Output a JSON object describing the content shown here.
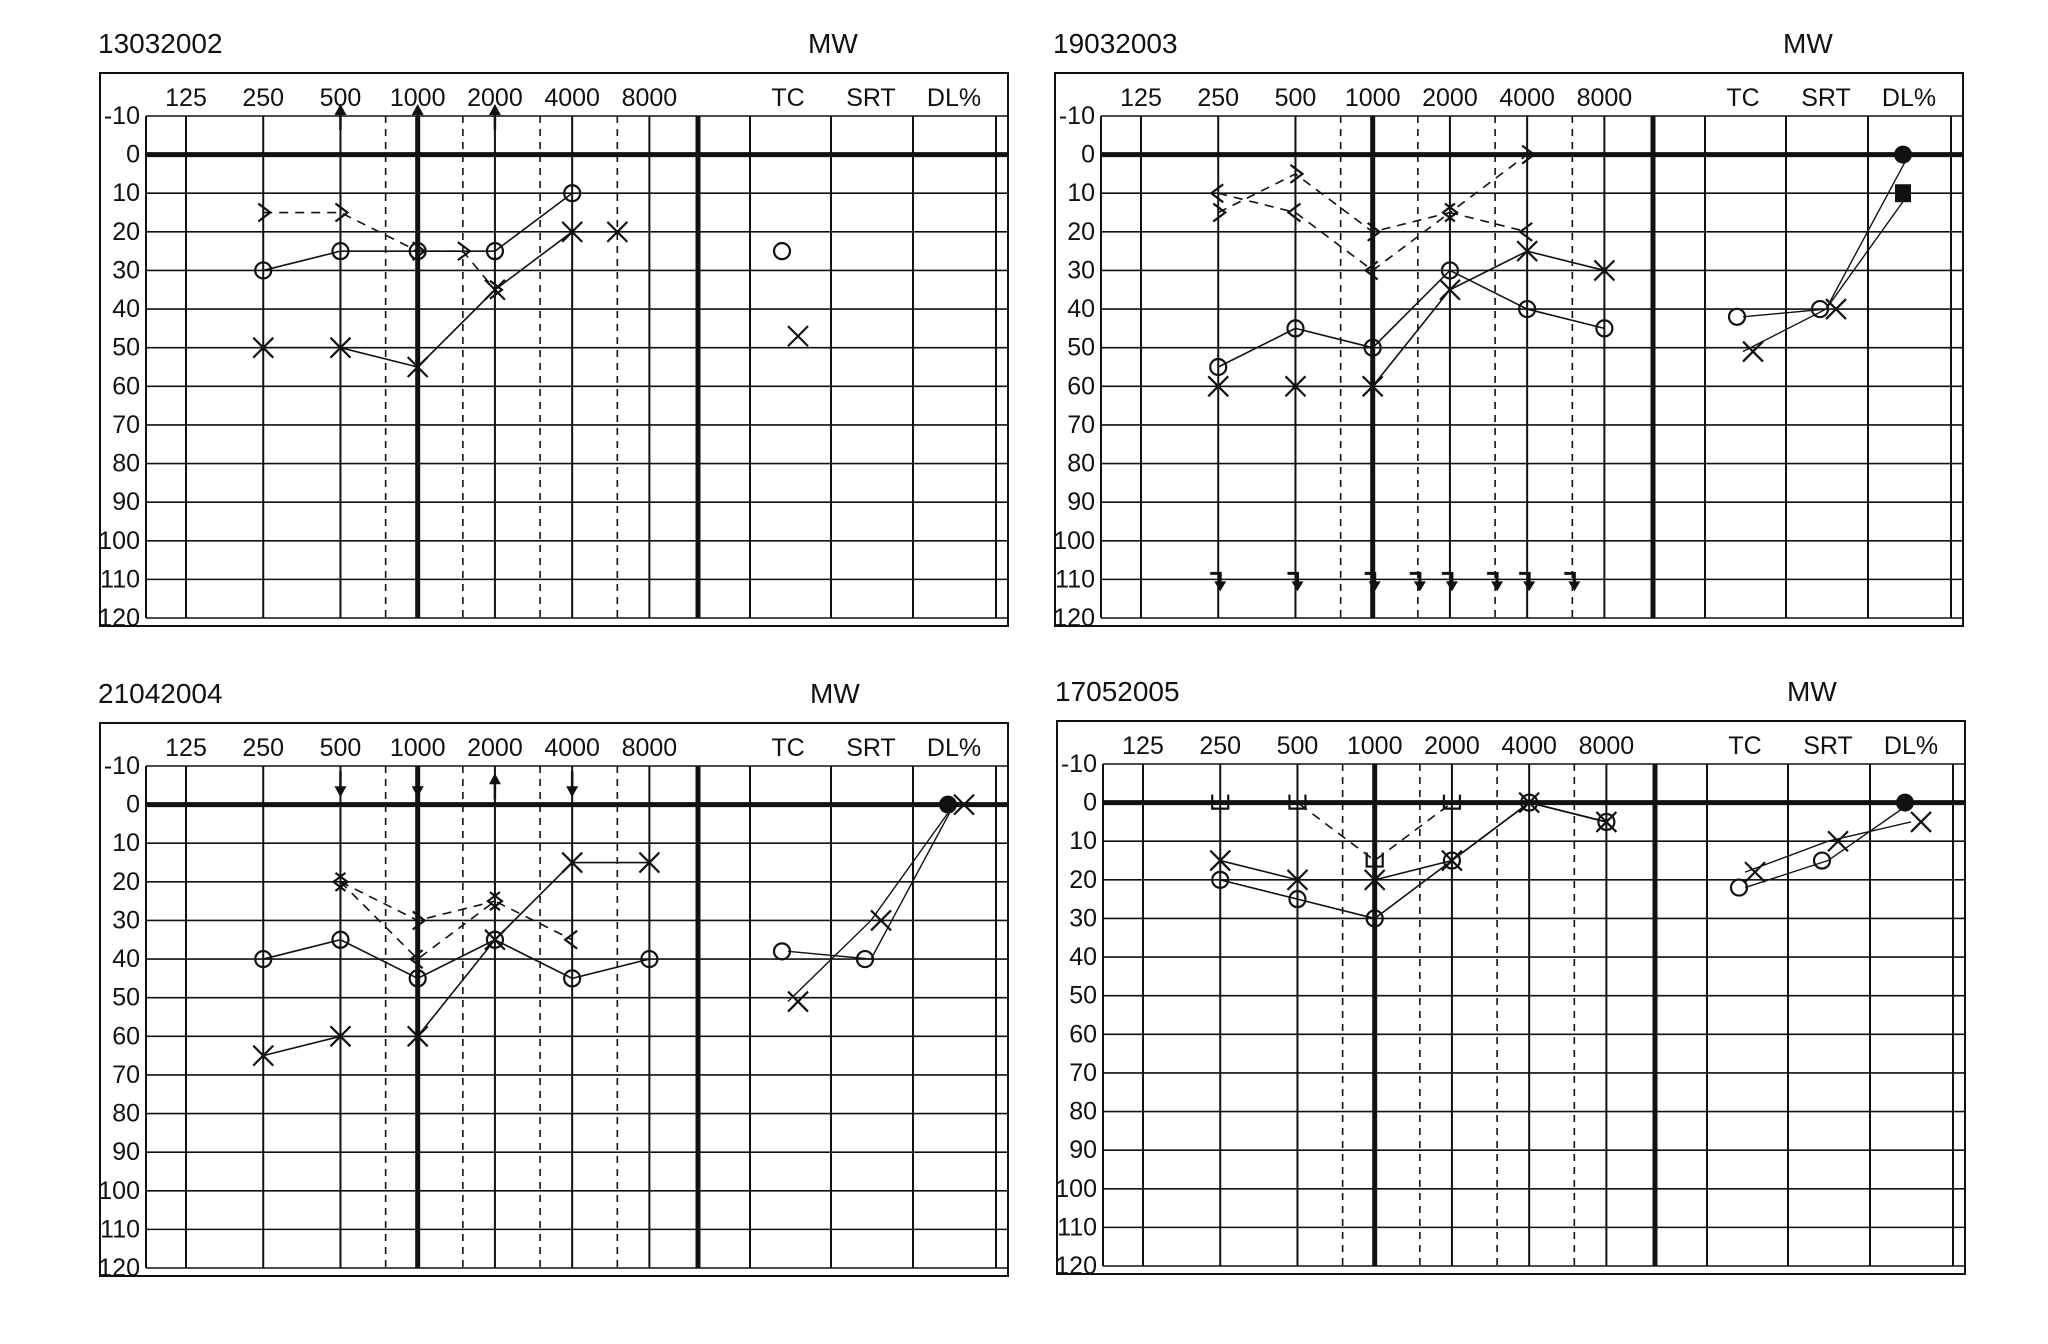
{
  "chart_data": [
    {
      "type": "line",
      "title": "13032002",
      "subtitle": "MW",
      "x_tick_labels": [
        "125",
        "250",
        "500",
        "1000",
        "2000",
        "4000",
        "8000"
      ],
      "extra_column_labels": [
        "TC",
        "SRT",
        "DL%"
      ],
      "y_tick_labels": [
        "-10",
        "0",
        "10",
        "20",
        "30",
        "40",
        "50",
        "60",
        "70",
        "80",
        "90",
        "100",
        "110",
        "120"
      ],
      "ylim": [
        -10,
        120
      ],
      "y_inverted": true,
      "grid": true,
      "series": [
        {
          "marker": "circle",
          "line": "solid",
          "points": [
            [
              "250",
              30
            ],
            [
              "500",
              25
            ],
            [
              "1000",
              25
            ],
            [
              "2000",
              25
            ],
            [
              "4000",
              10
            ]
          ]
        },
        {
          "marker": "x",
          "line": "solid",
          "points": [
            [
              "250",
              50
            ],
            [
              "500",
              50
            ],
            [
              "1000",
              55
            ],
            [
              "2000",
              35
            ],
            [
              "4000",
              20
            ],
            [
              "6000",
              20
            ]
          ]
        },
        {
          "marker": "right-bracket",
          "line": "dashed",
          "points": [
            [
              "250",
              15
            ],
            [
              "500",
              15
            ],
            [
              "1000",
              25
            ],
            [
              "1500",
              25
            ],
            [
              "2000",
              35
            ]
          ]
        },
        {
          "marker": "arrow-up",
          "line": "none",
          "points": [
            [
              "500",
              -10
            ],
            [
              "1000",
              -10
            ],
            [
              "2000",
              -10
            ]
          ]
        }
      ],
      "extra_values": [
        {
          "column": "TC",
          "marker": "circle",
          "value": 25
        },
        {
          "column": "TC",
          "marker": "x",
          "value": 47
        }
      ]
    },
    {
      "type": "line",
      "title": "19032003",
      "subtitle": "MW",
      "x_tick_labels": [
        "125",
        "250",
        "500",
        "1000",
        "2000",
        "4000",
        "8000"
      ],
      "extra_column_labels": [
        "TC",
        "SRT",
        "DL%"
      ],
      "y_tick_labels": [
        "-10",
        "0",
        "10",
        "20",
        "30",
        "40",
        "50",
        "60",
        "70",
        "80",
        "90",
        "100",
        "110",
        "120"
      ],
      "ylim": [
        -10,
        120
      ],
      "y_inverted": true,
      "grid": true,
      "series": [
        {
          "marker": "circle",
          "line": "solid",
          "points": [
            [
              "250",
              55
            ],
            [
              "500",
              45
            ],
            [
              "1000",
              50
            ],
            [
              "2000",
              30
            ],
            [
              "4000",
              40
            ],
            [
              "8000",
              45
            ]
          ]
        },
        {
          "marker": "x",
          "line": "solid",
          "points": [
            [
              "250",
              60
            ],
            [
              "500",
              60
            ],
            [
              "1000",
              60
            ],
            [
              "2000",
              35
            ],
            [
              "4000",
              25
            ],
            [
              "8000",
              30
            ]
          ]
        },
        {
          "marker": "left-bracket",
          "line": "dashed",
          "points": [
            [
              "250",
              10
            ],
            [
              "500",
              15
            ],
            [
              "1000",
              30
            ],
            [
              "2000",
              15
            ],
            [
              "4000",
              20
            ]
          ]
        },
        {
          "marker": "right-bracket",
          "line": "dashed",
          "points": [
            [
              "250",
              15
            ],
            [
              "500",
              5
            ],
            [
              "1000",
              20
            ],
            [
              "2000",
              15
            ],
            [
              "4000",
              0
            ]
          ]
        },
        {
          "marker": "no-response",
          "line": "none",
          "points": [
            [
              "250",
              110
            ],
            [
              "500",
              110
            ],
            [
              "1000",
              110
            ],
            [
              "1500",
              110
            ],
            [
              "2000",
              110
            ],
            [
              "3000",
              110
            ],
            [
              "4000",
              110
            ],
            [
              "6000",
              110
            ]
          ]
        }
      ],
      "extra_values": [
        {
          "column": "TC",
          "marker": "circle",
          "value": 42
        },
        {
          "column": "TC",
          "marker": "x",
          "value": 51
        },
        {
          "column": "SRT",
          "marker": "circle",
          "value": 40
        },
        {
          "column": "SRT",
          "marker": "x",
          "value": 40
        },
        {
          "column": "DL%",
          "marker": "filled-circle",
          "value": 0
        },
        {
          "column": "DL%",
          "marker": "filled-square",
          "value": 10
        }
      ]
    },
    {
      "type": "line",
      "title": "21042004",
      "subtitle": "MW",
      "x_tick_labels": [
        "125",
        "250",
        "500",
        "1000",
        "2000",
        "4000",
        "8000"
      ],
      "extra_column_labels": [
        "TC",
        "SRT",
        "DL%"
      ],
      "y_tick_labels": [
        "-10",
        "0",
        "10",
        "20",
        "30",
        "40",
        "50",
        "60",
        "70",
        "80",
        "90",
        "100",
        "110",
        "120"
      ],
      "ylim": [
        -10,
        120
      ],
      "y_inverted": true,
      "grid": true,
      "series": [
        {
          "marker": "circle",
          "line": "solid",
          "points": [
            [
              "250",
              40
            ],
            [
              "500",
              35
            ],
            [
              "1000",
              45
            ],
            [
              "2000",
              35
            ],
            [
              "4000",
              45
            ],
            [
              "8000",
              40
            ]
          ]
        },
        {
          "marker": "x",
          "line": "solid",
          "points": [
            [
              "250",
              65
            ],
            [
              "500",
              60
            ],
            [
              "1000",
              60
            ],
            [
              "2000",
              35
            ],
            [
              "4000",
              15
            ],
            [
              "8000",
              15
            ]
          ]
        },
        {
          "marker": "left-bracket",
          "line": "dashed",
          "points": [
            [
              "500",
              20
            ],
            [
              "1000",
              40
            ],
            [
              "2000",
              25
            ],
            [
              "4000",
              35
            ]
          ]
        },
        {
          "marker": "right-bracket",
          "line": "dashed",
          "points": [
            [
              "500",
              20
            ],
            [
              "1000",
              30
            ],
            [
              "2000",
              25
            ]
          ]
        },
        {
          "marker": "arrow-down",
          "line": "none",
          "points": [
            [
              "500",
              -5
            ],
            [
              "1000",
              -5
            ],
            [
              "4000",
              -5
            ]
          ]
        },
        {
          "marker": "arrow-up",
          "line": "none",
          "points": [
            [
              "2000",
              -5
            ]
          ]
        }
      ],
      "extra_values": [
        {
          "column": "TC",
          "marker": "circle",
          "value": 38
        },
        {
          "column": "TC",
          "marker": "x",
          "value": 51
        },
        {
          "column": "SRT",
          "marker": "circle",
          "value": 40
        },
        {
          "column": "SRT",
          "marker": "x",
          "value": 30
        },
        {
          "column": "DL%",
          "marker": "filled-circle",
          "value": 0
        },
        {
          "column": "DL%",
          "marker": "x",
          "value": 0
        }
      ]
    },
    {
      "type": "line",
      "title": "17052005",
      "subtitle": "MW",
      "x_tick_labels": [
        "125",
        "250",
        "500",
        "1000",
        "2000",
        "4000",
        "8000"
      ],
      "extra_column_labels": [
        "TC",
        "SRT",
        "DL%"
      ],
      "y_tick_labels": [
        "-10",
        "0",
        "10",
        "20",
        "30",
        "40",
        "50",
        "60",
        "70",
        "80",
        "90",
        "100",
        "110",
        "120"
      ],
      "ylim": [
        -10,
        120
      ],
      "y_inverted": true,
      "grid": true,
      "series": [
        {
          "marker": "circle",
          "line": "solid",
          "points": [
            [
              "250",
              20
            ],
            [
              "500",
              25
            ],
            [
              "1000",
              30
            ],
            [
              "2000",
              15
            ],
            [
              "4000",
              0
            ],
            [
              "8000",
              5
            ]
          ]
        },
        {
          "marker": "x",
          "line": "solid",
          "points": [
            [
              "250",
              15
            ],
            [
              "500",
              20
            ],
            [
              "1000",
              20
            ],
            [
              "2000",
              15
            ],
            [
              "4000",
              0
            ],
            [
              "8000",
              5
            ]
          ]
        },
        {
          "marker": "bone-bracket",
          "line": "dashed",
          "points": [
            [
              "250",
              0
            ],
            [
              "500",
              0
            ],
            [
              "1000",
              15
            ],
            [
              "2000",
              0
            ]
          ]
        }
      ],
      "extra_values": [
        {
          "column": "TC",
          "marker": "circle",
          "value": 22
        },
        {
          "column": "TC",
          "marker": "x",
          "value": 18
        },
        {
          "column": "SRT",
          "marker": "circle",
          "value": 15
        },
        {
          "column": "SRT",
          "marker": "x",
          "value": 10
        },
        {
          "column": "DL%",
          "marker": "filled-circle",
          "value": 0
        },
        {
          "column": "DL%",
          "marker": "x",
          "value": 5
        }
      ]
    }
  ]
}
